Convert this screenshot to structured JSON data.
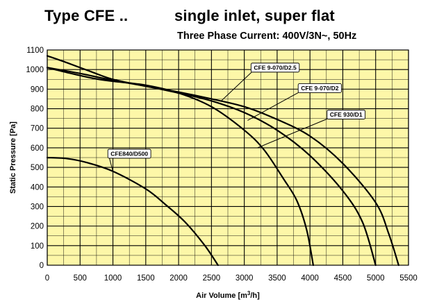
{
  "header": {
    "type_label": "Type CFE ..",
    "description": "single inlet, super flat",
    "current": "Three Phase Current: 400V/3N~, 50Hz"
  },
  "chart_data": {
    "type": "line",
    "xlabel": "Air Volume [m³/h]",
    "ylabel": "Static Pressure [Pa]",
    "xlim": [
      0,
      5500
    ],
    "ylim": [
      0,
      1100
    ],
    "xticks": [
      0,
      500,
      1000,
      1500,
      2000,
      2500,
      3000,
      3500,
      4000,
      4500,
      5000,
      5500
    ],
    "yticks": [
      0,
      100,
      200,
      300,
      400,
      500,
      600,
      700,
      800,
      900,
      1000,
      1100
    ],
    "xtick_labels": [
      "0",
      "500",
      "1000",
      "1500",
      "2000",
      "2500",
      "3000",
      "3500",
      "4000",
      "4500",
      "5000",
      "5500"
    ],
    "ytick_labels": [
      "0",
      "100",
      "200",
      "300",
      "400",
      "500",
      "600",
      "700",
      "800",
      "900",
      "1000",
      "1100"
    ],
    "grid": true,
    "background": "#fdf7a8",
    "series": [
      {
        "name": "CFE840/D500",
        "points": [
          [
            0,
            550
          ],
          [
            300,
            545
          ],
          [
            600,
            525
          ],
          [
            1000,
            480
          ],
          [
            1500,
            390
          ],
          [
            1800,
            310
          ],
          [
            2100,
            220
          ],
          [
            2400,
            100
          ],
          [
            2600,
            0
          ]
        ]
      },
      {
        "name": "CFE 930/D1",
        "points": [
          [
            0,
            1010
          ],
          [
            300,
            985
          ],
          [
            700,
            955
          ],
          [
            1000,
            940
          ],
          [
            1500,
            920
          ],
          [
            2000,
            880
          ],
          [
            2500,
            810
          ],
          [
            3000,
            690
          ],
          [
            3300,
            590
          ],
          [
            3600,
            440
          ],
          [
            3800,
            330
          ],
          [
            3950,
            180
          ],
          [
            4050,
            0
          ]
        ]
      },
      {
        "name": "CFE 9-070/D2",
        "points": [
          [
            0,
            1010
          ],
          [
            500,
            980
          ],
          [
            1000,
            945
          ],
          [
            1500,
            915
          ],
          [
            2000,
            880
          ],
          [
            2500,
            840
          ],
          [
            3000,
            780
          ],
          [
            3500,
            690
          ],
          [
            4000,
            560
          ],
          [
            4500,
            380
          ],
          [
            4800,
            220
          ],
          [
            5000,
            0
          ]
        ]
      },
      {
        "name": "CFE 9-070/D2.5",
        "points": [
          [
            0,
            1070
          ],
          [
            300,
            1035
          ],
          [
            700,
            985
          ],
          [
            1000,
            950
          ],
          [
            1500,
            915
          ],
          [
            2000,
            885
          ],
          [
            2500,
            850
          ],
          [
            3000,
            810
          ],
          [
            3500,
            745
          ],
          [
            4000,
            660
          ],
          [
            4500,
            520
          ],
          [
            5000,
            320
          ],
          [
            5200,
            160
          ],
          [
            5350,
            0
          ]
        ]
      }
    ],
    "callouts": [
      {
        "text": "CFE 9-070/D2.5",
        "series": "CFE 9-070/D2.5",
        "anchor": [
          2650,
          840
        ],
        "box": [
          3470,
          1010
        ]
      },
      {
        "text": "CFE 9-070/D2",
        "series": "CFE 9-070/D2",
        "anchor": [
          3050,
          740
        ],
        "box": [
          4150,
          905
        ]
      },
      {
        "text": "CFE 930/D1",
        "series": "CFE 930/D1",
        "anchor": [
          3200,
          600
        ],
        "box": [
          4550,
          770
        ]
      },
      {
        "text": "CFE840/D500",
        "series": "CFE840/D500",
        "anchor": [
          1000,
          480
        ],
        "box": [
          1250,
          570
        ]
      }
    ]
  }
}
